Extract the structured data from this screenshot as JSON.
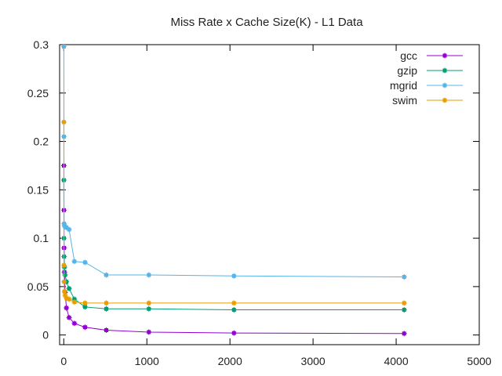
{
  "chart_data": {
    "type": "line",
    "title": "Miss Rate x Cache Size(K) - L1 Data",
    "xlabel": "",
    "ylabel": "",
    "xlim": [
      -50,
      5000
    ],
    "ylim": [
      -0.01,
      0.3
    ],
    "xticks": [
      0,
      1000,
      2000,
      3000,
      4000,
      5000
    ],
    "yticks": [
      0,
      0.05,
      0.1,
      0.15,
      0.2,
      0.25,
      0.3
    ],
    "ytick_labels": [
      "0",
      "0.05",
      "0.1",
      "0.15",
      "0.2",
      "0.25",
      "0.3"
    ],
    "legend_position": "top-right",
    "grid": false,
    "series": [
      {
        "name": "gcc",
        "color": "#9400d3",
        "x": [
          1,
          2,
          4,
          8,
          16,
          32,
          64,
          128,
          256,
          512,
          1024,
          2048,
          4096
        ],
        "y": [
          0.175,
          0.129,
          0.09,
          0.065,
          0.044,
          0.028,
          0.018,
          0.012,
          0.008,
          0.005,
          0.003,
          0.002,
          0.0015
        ]
      },
      {
        "name": "gzip",
        "color": "#009e73",
        "x": [
          1,
          2,
          4,
          8,
          16,
          32,
          64,
          128,
          256,
          512,
          1024,
          2048,
          4096
        ],
        "y": [
          0.16,
          0.1,
          0.081,
          0.07,
          0.062,
          0.055,
          0.048,
          0.037,
          0.029,
          0.027,
          0.027,
          0.026,
          0.026
        ]
      },
      {
        "name": "mgrid",
        "color": "#56b4e9",
        "x": [
          1,
          2,
          4,
          8,
          16,
          32,
          64,
          128,
          256,
          512,
          1024,
          2048,
          4096
        ],
        "y": [
          0.298,
          0.205,
          0.115,
          0.113,
          0.112,
          0.111,
          0.109,
          0.076,
          0.075,
          0.062,
          0.062,
          0.061,
          0.06
        ]
      },
      {
        "name": "swim",
        "color": "#e69f00",
        "x": [
          1,
          2,
          4,
          8,
          16,
          32,
          64,
          128,
          256,
          512,
          1024,
          2048,
          4096
        ],
        "y": [
          0.22,
          0.072,
          0.055,
          0.045,
          0.041,
          0.038,
          0.037,
          0.034,
          0.033,
          0.033,
          0.033,
          0.033,
          0.033
        ]
      }
    ]
  }
}
